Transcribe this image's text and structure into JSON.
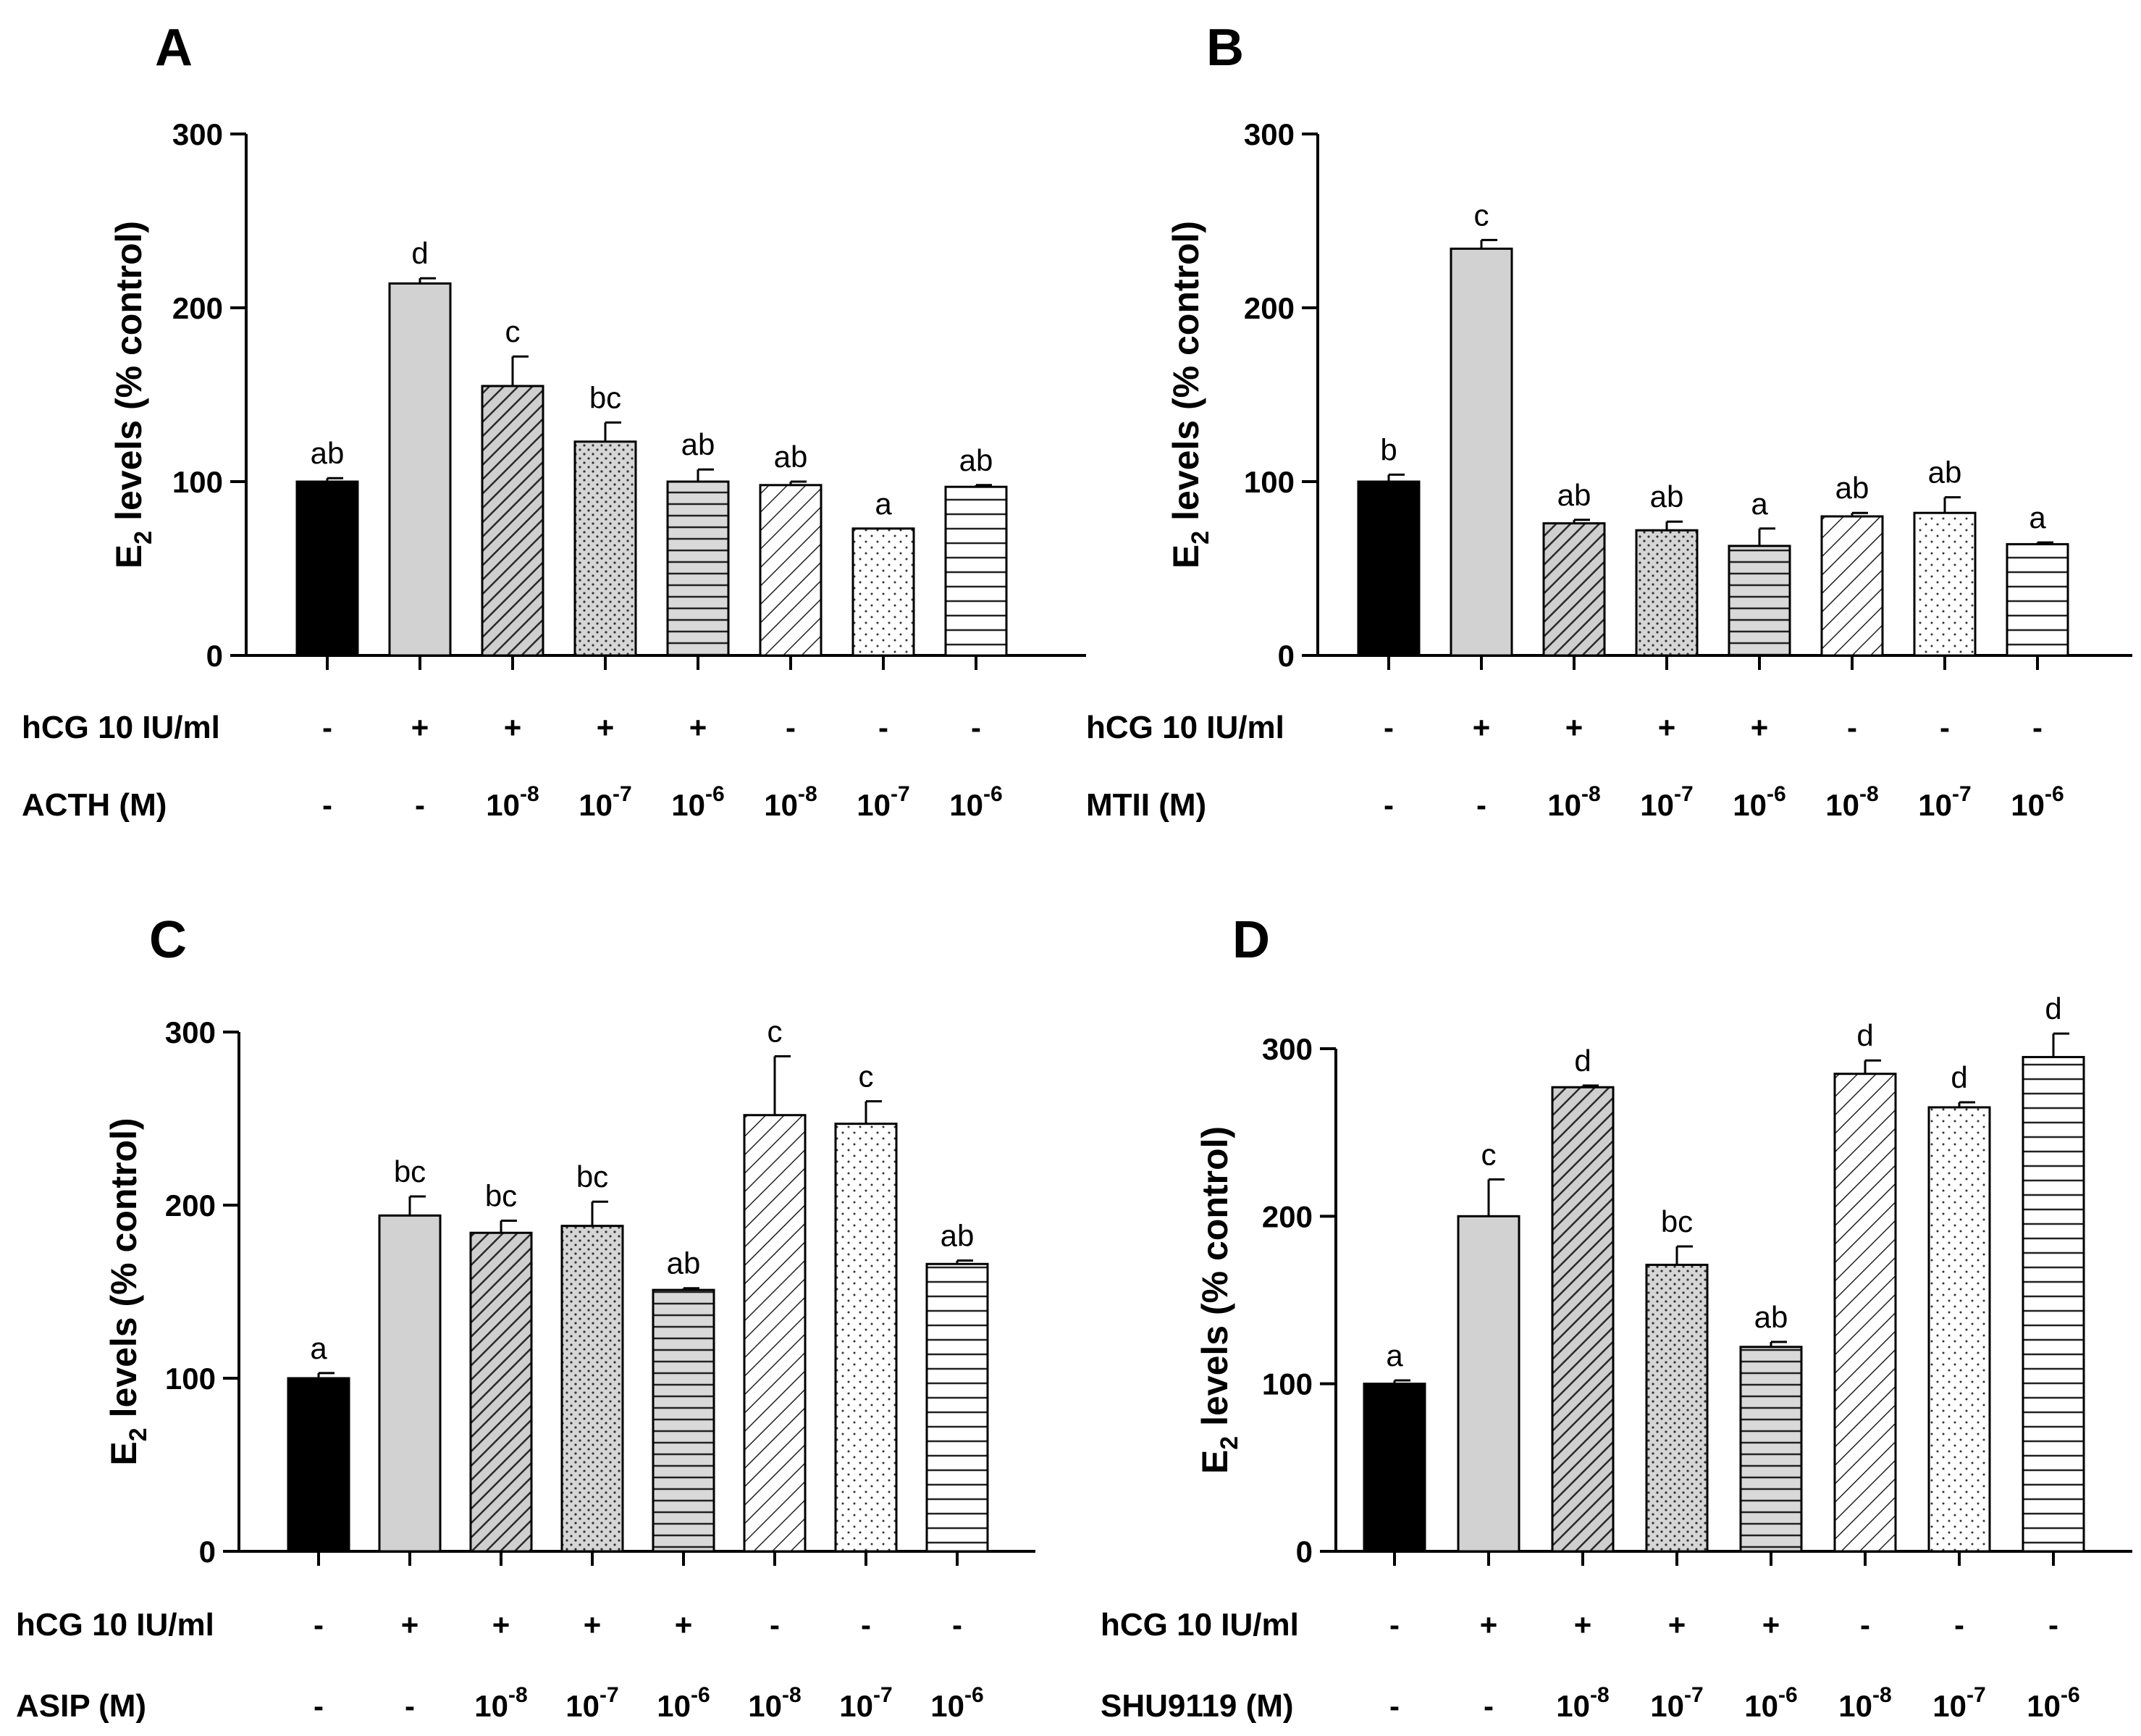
{
  "chart_data": [
    {
      "panel": "A",
      "type": "bar",
      "ylabel_main": "E",
      "ylabel_sub": "2",
      "ylabel_rest": " levels (% control)",
      "ylim": [
        0,
        300
      ],
      "yticks": [
        0,
        100,
        200,
        300
      ],
      "values": [
        100,
        214,
        155,
        123,
        100,
        98,
        73,
        97
      ],
      "errors": [
        2,
        3,
        17,
        11,
        7,
        2,
        0,
        1
      ],
      "letters": [
        "ab",
        "d",
        "c",
        "bc",
        "ab",
        "ab",
        "a",
        "ab"
      ],
      "row1_label": "hCG 10 IU/ml",
      "row1": [
        "-",
        "+",
        "+",
        "+",
        "+",
        "-",
        "-",
        "-"
      ],
      "row2_label": "ACTH (M)",
      "row2": [
        {
          "base": "-",
          "exp": ""
        },
        {
          "base": "-",
          "exp": ""
        },
        {
          "base": "10",
          "exp": "-8"
        },
        {
          "base": "10",
          "exp": "-7"
        },
        {
          "base": "10",
          "exp": "-6"
        },
        {
          "base": "10",
          "exp": "-8"
        },
        {
          "base": "10",
          "exp": "-7"
        },
        {
          "base": "10",
          "exp": "-6"
        }
      ]
    },
    {
      "panel": "B",
      "type": "bar",
      "ylabel_main": "E",
      "ylabel_sub": "2",
      "ylabel_rest": " levels (% control)",
      "ylim": [
        0,
        300
      ],
      "yticks": [
        0,
        100,
        200,
        300
      ],
      "values": [
        100,
        234,
        76,
        72,
        63,
        80,
        82,
        64
      ],
      "errors": [
        4,
        5,
        2,
        5,
        10,
        2,
        9,
        1
      ],
      "letters": [
        "b",
        "c",
        "ab",
        "ab",
        "a",
        "ab",
        "ab",
        "a"
      ],
      "row1_label": "hCG 10 IU/ml",
      "row1": [
        "-",
        "+",
        "+",
        "+",
        "+",
        "-",
        "-",
        "-"
      ],
      "row2_label": "MTII (M)",
      "row2": [
        {
          "base": "-",
          "exp": ""
        },
        {
          "base": "-",
          "exp": ""
        },
        {
          "base": "10",
          "exp": "-8"
        },
        {
          "base": "10",
          "exp": "-7"
        },
        {
          "base": "10",
          "exp": "-6"
        },
        {
          "base": "10",
          "exp": "-8"
        },
        {
          "base": "10",
          "exp": "-7"
        },
        {
          "base": "10",
          "exp": "-6"
        }
      ]
    },
    {
      "panel": "C",
      "type": "bar",
      "ylabel_main": "E",
      "ylabel_sub": "2",
      "ylabel_rest": " levels (% control)",
      "ylim": [
        0,
        300
      ],
      "yticks": [
        0,
        100,
        200,
        300
      ],
      "values": [
        100,
        194,
        184,
        188,
        151,
        252,
        247,
        166
      ],
      "errors": [
        3,
        11,
        7,
        14,
        1,
        34,
        13,
        2
      ],
      "letters": [
        "a",
        "bc",
        "bc",
        "bc",
        "ab",
        "c",
        "c",
        "ab"
      ],
      "row1_label": "hCG 10 IU/ml",
      "row1": [
        "-",
        "+",
        "+",
        "+",
        "+",
        "-",
        "-",
        "-"
      ],
      "row2_label": "ASIP (M)",
      "row2": [
        {
          "base": "-",
          "exp": ""
        },
        {
          "base": "-",
          "exp": ""
        },
        {
          "base": "10",
          "exp": "-8"
        },
        {
          "base": "10",
          "exp": "-7"
        },
        {
          "base": "10",
          "exp": "-6"
        },
        {
          "base": "10",
          "exp": "-8"
        },
        {
          "base": "10",
          "exp": "-7"
        },
        {
          "base": "10",
          "exp": "-6"
        }
      ]
    },
    {
      "panel": "D",
      "type": "bar",
      "ylabel_main": "E",
      "ylabel_sub": "2",
      "ylabel_rest": " levels (% control)",
      "ylim": [
        0,
        300
      ],
      "yticks": [
        0,
        100,
        200,
        300
      ],
      "values": [
        100,
        200,
        277,
        171,
        122,
        285,
        265,
        295
      ],
      "errors": [
        2,
        22,
        1,
        11,
        3,
        8,
        3,
        14
      ],
      "letters": [
        "a",
        "c",
        "d",
        "bc",
        "ab",
        "d",
        "d",
        "d"
      ],
      "row1_label": "hCG 10 IU/ml",
      "row1": [
        "-",
        "+",
        "+",
        "+",
        "+",
        "-",
        "-",
        "-"
      ],
      "row2_label": "SHU9119 (M)",
      "row2": [
        {
          "base": "-",
          "exp": ""
        },
        {
          "base": "-",
          "exp": ""
        },
        {
          "base": "10",
          "exp": "-8"
        },
        {
          "base": "10",
          "exp": "-7"
        },
        {
          "base": "10",
          "exp": "-6"
        },
        {
          "base": "10",
          "exp": "-8"
        },
        {
          "base": "10",
          "exp": "-7"
        },
        {
          "base": "10",
          "exp": "-6"
        }
      ]
    }
  ]
}
